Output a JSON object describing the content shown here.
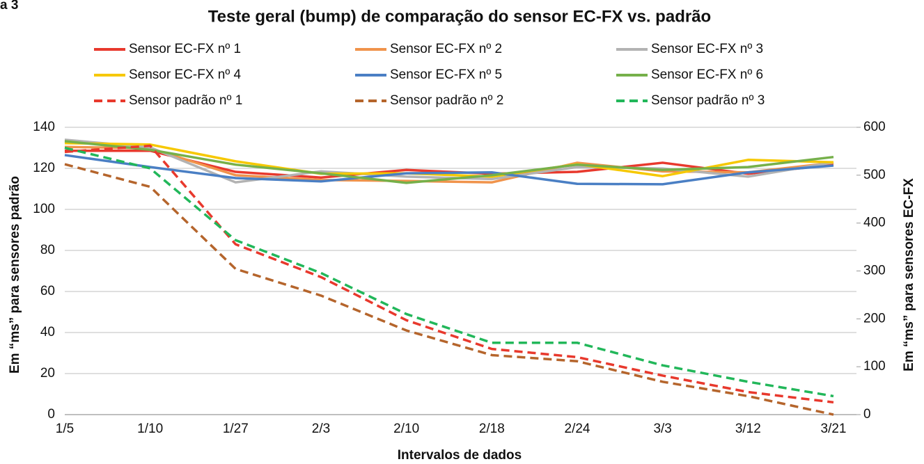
{
  "chart_data": {
    "type": "line",
    "figure_label": "a 3",
    "title": "Teste geral (bump) de comparação do sensor EC-FX vs. padrão",
    "x_label": "Intervalos de dados",
    "y_label": "Em “ms” para sensores padrão",
    "y2_label": "Em “ms” para sensores EC-FX",
    "categories": [
      "1/5",
      "1/10",
      "1/27",
      "2/3",
      "2/10",
      "2/18",
      "2/24",
      "3/3",
      "3/12",
      "3/21"
    ],
    "ylim": [
      0,
      140
    ],
    "yticks": [
      0,
      20,
      40,
      60,
      80,
      100,
      120,
      140
    ],
    "y2lim": [
      0,
      600
    ],
    "y2ticks": [
      0,
      100,
      200,
      300,
      400,
      500,
      600
    ],
    "grid": true,
    "series": [
      {
        "name": "Sensor EC-FX nº 1",
        "color": "#e8392d",
        "style": "solid",
        "axis": "y2",
        "values": [
          551,
          551,
          507,
          495,
          511,
          503,
          507,
          526,
          503,
          522
        ]
      },
      {
        "name": "Sensor EC-FX nº 2",
        "color": "#f0934b",
        "style": "solid",
        "axis": "y2",
        "values": [
          559,
          556,
          500,
          490,
          488,
          485,
          526,
          508,
          506,
          526
        ]
      },
      {
        "name": "Sensor EC-FX nº 3",
        "color": "#b3b3b3",
        "style": "solid",
        "axis": "y2",
        "values": [
          574,
          558,
          485,
          508,
          497,
          492,
          517,
          514,
          497,
          527
        ]
      },
      {
        "name": "Sensor EC-FX nº 4",
        "color": "#f6c800",
        "style": "solid",
        "axis": "y2",
        "values": [
          567,
          564,
          529,
          503,
          504,
          497,
          523,
          498,
          532,
          527
        ]
      },
      {
        "name": "Sensor EC-FX nº 5",
        "color": "#4a7fc4",
        "style": "solid",
        "axis": "y2",
        "values": [
          542,
          517,
          494,
          487,
          504,
          506,
          482,
          481,
          506,
          520
        ]
      },
      {
        "name": "Sensor EC-FX nº 6",
        "color": "#76b04a",
        "style": "solid",
        "axis": "y2",
        "values": [
          571,
          553,
          522,
          504,
          484,
          500,
          522,
          511,
          517,
          538
        ]
      },
      {
        "name": "Sensor padrão nº 1",
        "color": "#e8392d",
        "style": "dashed",
        "values": [
          128,
          131,
          83,
          67,
          46,
          32,
          28,
          19,
          11,
          6
        ]
      },
      {
        "name": "Sensor padrão nº 2",
        "color": "#b5652c",
        "style": "dashed",
        "values": [
          122,
          111,
          71,
          58,
          41,
          29,
          26,
          16,
          9,
          0
        ]
      },
      {
        "name": "Sensor padrão nº 3",
        "color": "#22b75a",
        "style": "dashed",
        "values": [
          130,
          120,
          85,
          69,
          49,
          35,
          35,
          24,
          16,
          9
        ]
      }
    ]
  }
}
